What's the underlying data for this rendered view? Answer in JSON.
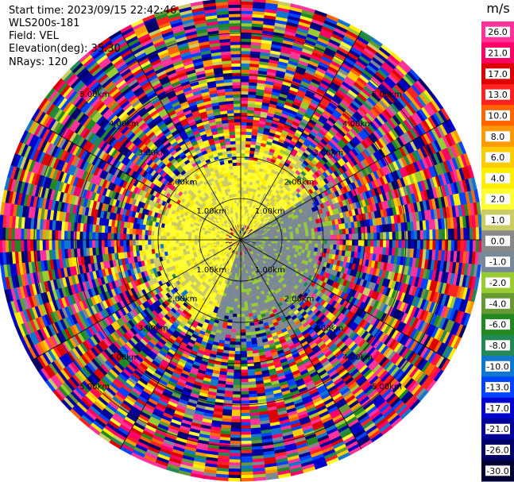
{
  "header": {
    "start_time": "Start time: 2023/09/15 22:42:46",
    "instrument": "WLS200s-181",
    "field": "Field: VEL",
    "elevation": "Elevation(deg): 35.30",
    "nrays": "NRays: 120"
  },
  "chart_data": {
    "type": "heatmap",
    "subtype": "radar-ppi",
    "field": "VEL",
    "units": "m/s",
    "n_rays": 120,
    "elevation_deg": 35.3,
    "range_rings_km": [
      1,
      2,
      3,
      4,
      5
    ],
    "ring_labels": [
      "1.00km",
      "2.00km",
      "3.00km",
      "4.00km",
      "5.00km"
    ],
    "max_range_km": 5.85,
    "colorbar": {
      "ticks": [
        "26.0",
        "21.0",
        "17.0",
        "13.0",
        "10.0",
        "8.0",
        "6.0",
        "4.0",
        "2.0",
        "1.0",
        "0.0",
        "-1.0",
        "-2.0",
        "-4.0",
        "-6.0",
        "-8.0",
        "-10.0",
        "-13.0",
        "-17.0",
        "-21.0",
        "-26.0",
        "-30.0"
      ],
      "colors": [
        "#ff3399",
        "#ff0066",
        "#dd0000",
        "#ff2222",
        "#ff6600",
        "#ff9900",
        "#ffcc00",
        "#ffee00",
        "#ffff33",
        "#cccc66",
        "#888888",
        "#778899",
        "#99cc33",
        "#669933",
        "#228822",
        "#228855",
        "#1177cc",
        "#0044ff",
        "#0000cc",
        "#000099",
        "#000066",
        "#000033"
      ],
      "range": [
        -30,
        30
      ]
    },
    "pattern": {
      "inner_range_km": 1.7,
      "inner_northwest": "positive (0 to 3 m/s)",
      "inner_southeast": "negative (-1 to -3 m/s)",
      "outer_range": "noise / folded values"
    }
  }
}
